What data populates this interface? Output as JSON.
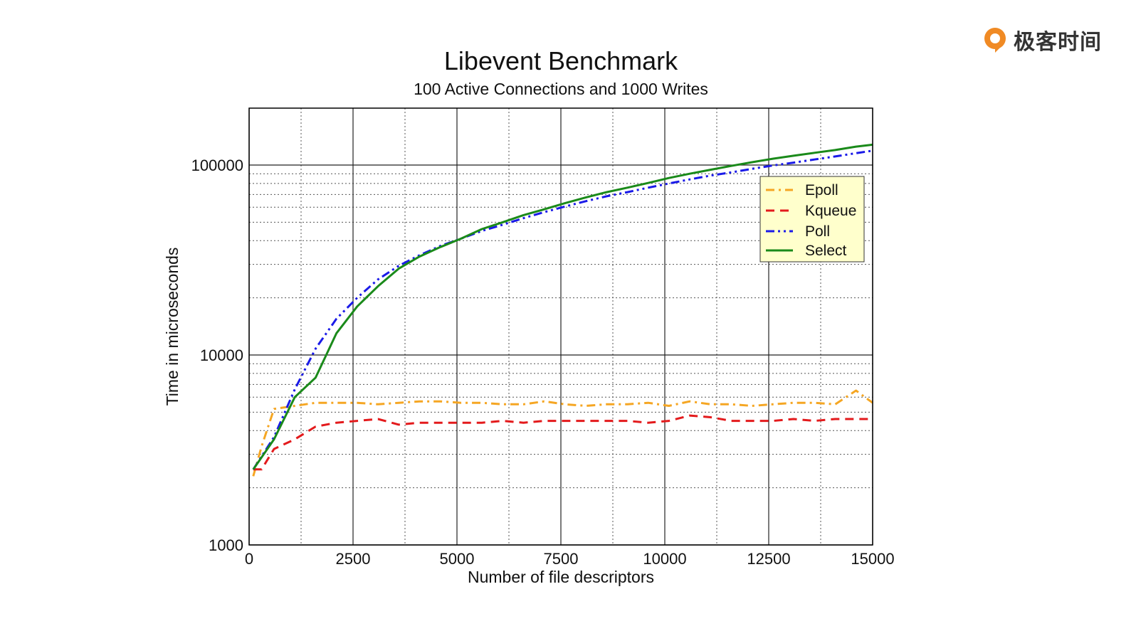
{
  "brand": {
    "name": "极客时间",
    "logo_icon": "geektime-logo-icon",
    "logo_color": "#f08a24"
  },
  "chart_data": {
    "type": "line",
    "title": "Libevent Benchmark",
    "subtitle": "100 Active Connections and 1000 Writes",
    "xlabel": "Number of file descriptors",
    "ylabel": "Time in microseconds",
    "xlim": [
      0,
      15000
    ],
    "ylim": [
      1000,
      200000
    ],
    "yscale": "log",
    "grid": true,
    "legend_position": "upper-right",
    "x_ticks": [
      {
        "value": 0,
        "label": "0"
      },
      {
        "value": 2500,
        "label": "2500"
      },
      {
        "value": 5000,
        "label": "5000"
      },
      {
        "value": 7500,
        "label": "7500"
      },
      {
        "value": 10000,
        "label": "10000"
      },
      {
        "value": 12500,
        "label": "12500"
      },
      {
        "value": 15000,
        "label": "15000"
      }
    ],
    "y_ticks": [
      {
        "value": 1000,
        "label": "1000"
      },
      {
        "value": 10000,
        "label": "10000"
      },
      {
        "value": 100000,
        "label": "100000"
      }
    ],
    "series": [
      {
        "name": "Epoll",
        "color": "#f5a623",
        "dash": "dashdot",
        "x": [
          100,
          300,
          600,
          1100,
          1600,
          2100,
          2600,
          3100,
          3600,
          4100,
          4600,
          5100,
          5600,
          6100,
          6600,
          7100,
          7600,
          8100,
          8600,
          9100,
          9600,
          10100,
          10600,
          11100,
          11600,
          12100,
          12600,
          13100,
          13600,
          14100,
          14600,
          15000
        ],
        "y": [
          2300,
          3300,
          5200,
          5400,
          5600,
          5600,
          5600,
          5500,
          5600,
          5700,
          5700,
          5600,
          5600,
          5500,
          5500,
          5700,
          5500,
          5400,
          5500,
          5500,
          5600,
          5400,
          5700,
          5500,
          5500,
          5400,
          5500,
          5600,
          5600,
          5500,
          6500,
          5600
        ]
      },
      {
        "name": "Kqueue",
        "color": "#e31a1c",
        "dash": "dashed",
        "x": [
          100,
          300,
          600,
          1100,
          1600,
          2100,
          2600,
          3100,
          3600,
          4100,
          4600,
          5100,
          5600,
          6100,
          6600,
          7100,
          7600,
          8100,
          8600,
          9100,
          9600,
          10100,
          10600,
          11100,
          11600,
          12100,
          12600,
          13100,
          13600,
          14100,
          14600,
          15000
        ],
        "y": [
          2500,
          2500,
          3200,
          3600,
          4200,
          4400,
          4500,
          4600,
          4300,
          4400,
          4400,
          4400,
          4400,
          4500,
          4400,
          4500,
          4500,
          4500,
          4500,
          4500,
          4400,
          4500,
          4800,
          4700,
          4500,
          4500,
          4500,
          4600,
          4500,
          4600,
          4600,
          4600
        ]
      },
      {
        "name": "Poll",
        "color": "#1a1ae8",
        "dash": "dashdotdot",
        "x": [
          100,
          600,
          1100,
          1600,
          2100,
          2600,
          3100,
          3600,
          4100,
          4600,
          5100,
          5600,
          6100,
          6600,
          7100,
          7600,
          8100,
          8600,
          9100,
          9600,
          10100,
          10600,
          11100,
          11600,
          12100,
          12600,
          13100,
          13600,
          14100,
          14600,
          15000
        ],
        "y": [
          2500,
          3700,
          6600,
          10800,
          15500,
          20000,
          25000,
          29500,
          33500,
          37500,
          41000,
          45000,
          48500,
          52500,
          56500,
          60500,
          64500,
          68500,
          72000,
          76000,
          80000,
          84000,
          88000,
          91500,
          95500,
          99500,
          103000,
          107000,
          111000,
          115500,
          119000
        ]
      },
      {
        "name": "Select",
        "color": "#1a8a1a",
        "dash": "solid",
        "x": [
          100,
          600,
          1100,
          1600,
          2100,
          2600,
          3100,
          3600,
          4100,
          4600,
          5100,
          5600,
          6100,
          6600,
          7100,
          7600,
          8100,
          8600,
          9100,
          9600,
          10100,
          10600,
          11100,
          11600,
          12100,
          12600,
          13100,
          13600,
          14100,
          14600,
          15000
        ],
        "y": [
          2500,
          3600,
          6000,
          7600,
          13000,
          18000,
          23000,
          28500,
          33000,
          37000,
          41000,
          46000,
          50000,
          54500,
          58500,
          63000,
          67500,
          72000,
          76000,
          80500,
          85500,
          90000,
          94500,
          99000,
          103500,
          108000,
          112000,
          116000,
          120000,
          125000,
          128000
        ]
      }
    ]
  }
}
